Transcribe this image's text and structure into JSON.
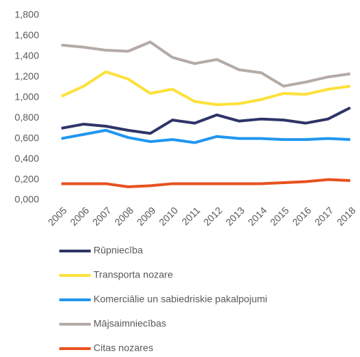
{
  "chart_data": {
    "type": "line",
    "categories": [
      "2005",
      "2006",
      "2007",
      "2008",
      "2009",
      "2010",
      "2011",
      "2012",
      "2013",
      "2014",
      "2015",
      "2016",
      "2017",
      "2018"
    ],
    "series": [
      {
        "name": "Rūpniecība",
        "color": "#2f3568",
        "values": [
          0.7,
          0.74,
          0.72,
          0.68,
          0.65,
          0.78,
          0.75,
          0.83,
          0.77,
          0.79,
          0.78,
          0.75,
          0.79,
          0.9
        ]
      },
      {
        "name": "Transporta nozare",
        "color": "#fde13b",
        "values": [
          1.01,
          1.11,
          1.25,
          1.18,
          1.04,
          1.08,
          0.96,
          0.93,
          0.94,
          0.98,
          1.04,
          1.03,
          1.08,
          1.11
        ]
      },
      {
        "name": "Komerciālie un sabiedriskie pakalpojumi",
        "color": "#2196f0",
        "values": [
          0.6,
          0.64,
          0.68,
          0.61,
          0.57,
          0.59,
          0.56,
          0.62,
          0.6,
          0.6,
          0.59,
          0.59,
          0.6,
          0.59
        ]
      },
      {
        "name": "Mājsaimniecības",
        "color": "#b4aaa6",
        "values": [
          1.51,
          1.49,
          1.46,
          1.45,
          1.54,
          1.39,
          1.33,
          1.37,
          1.27,
          1.24,
          1.11,
          1.15,
          1.2,
          1.23
        ]
      },
      {
        "name": "Citas nozares",
        "color": "#e8511f",
        "values": [
          0.16,
          0.16,
          0.16,
          0.13,
          0.14,
          0.16,
          0.16,
          0.16,
          0.16,
          0.16,
          0.17,
          0.18,
          0.2,
          0.19
        ]
      }
    ],
    "ylim": [
      0,
      1.8
    ],
    "yticks": [
      {
        "value": 0,
        "label": "0,000"
      },
      {
        "value": 0.2,
        "label": "0,200"
      },
      {
        "value": 0.4,
        "label": "0,400"
      },
      {
        "value": 0.6,
        "label": "0,600"
      },
      {
        "value": 0.8,
        "label": "0,800"
      },
      {
        "value": 1,
        "label": "1,000"
      },
      {
        "value": 1.2,
        "label": "1,200"
      },
      {
        "value": 1.4,
        "label": "1,400"
      },
      {
        "value": 1.6,
        "label": "1,600"
      },
      {
        "value": 1.8,
        "label": "1,800"
      }
    ],
    "grid": false,
    "legend": "bottom"
  }
}
